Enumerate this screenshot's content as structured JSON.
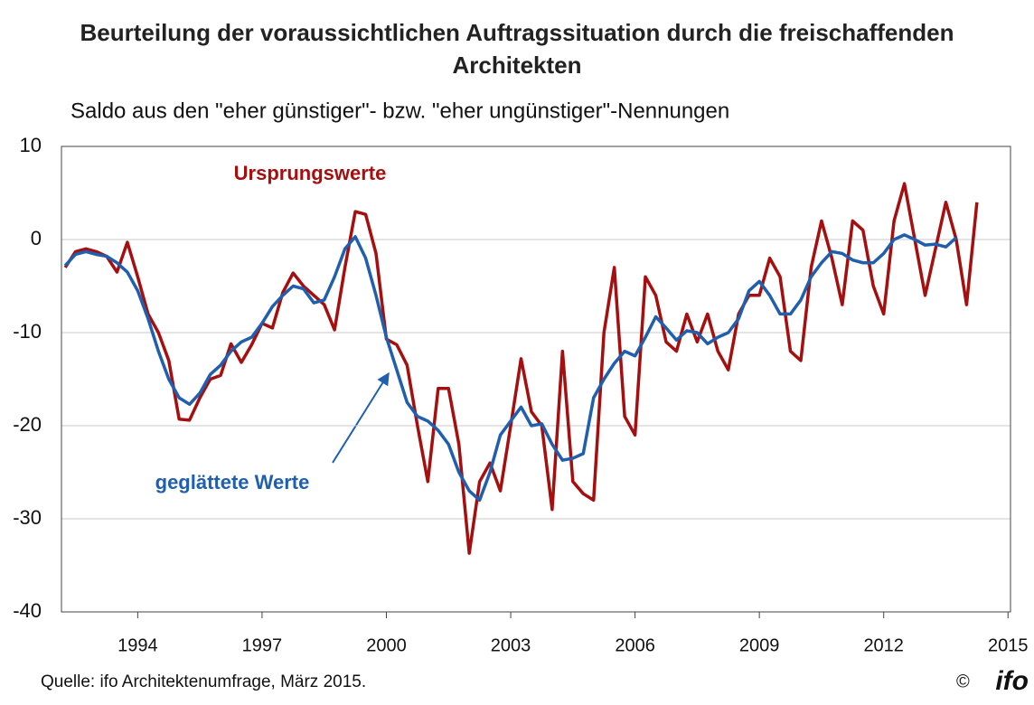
{
  "chart_data": {
    "type": "line",
    "title": "Beurteilung der voraussichtlichen Auftragssituation durch die freischaffenden Architekten",
    "subtitle": "Saldo aus den \"eher günstiger\"- bzw. \"eher ungünstiger\"-Nennungen",
    "annotations": [
      "Ursprungswerte",
      "geglättete Werte"
    ],
    "source": "Quelle: ifo Architektenumfrage, März 2015.",
    "copyright": "©",
    "logo": "ifo",
    "x": [
      1992.25,
      1992.5,
      1992.75,
      1993,
      1993.25,
      1993.5,
      1993.75,
      1994,
      1994.25,
      1994.5,
      1994.75,
      1995,
      1995.25,
      1995.5,
      1995.75,
      1996,
      1996.25,
      1996.5,
      1996.75,
      1997,
      1997.25,
      1997.5,
      1997.75,
      1998,
      1998.25,
      1998.5,
      1998.75,
      1999,
      1999.25,
      1999.5,
      1999.75,
      2000,
      2000.25,
      2000.5,
      2000.75,
      2001,
      2001.25,
      2001.5,
      2001.75,
      2002,
      2002.25,
      2002.5,
      2002.75,
      2003,
      2003.25,
      2003.5,
      2003.75,
      2004,
      2004.25,
      2004.5,
      2004.75,
      2005,
      2005.25,
      2005.5,
      2005.75,
      2006,
      2006.25,
      2006.5,
      2006.75,
      2007,
      2007.25,
      2007.5,
      2007.75,
      2008,
      2008.25,
      2008.5,
      2008.75,
      2009,
      2009.25,
      2009.5,
      2009.75,
      2010,
      2010.25,
      2010.5,
      2010.75,
      2011,
      2011.25,
      2011.5,
      2011.75,
      2012,
      2012.25,
      2012.5,
      2012.75,
      2013,
      2013.25,
      2013.5,
      2013.75,
      2014,
      2014.25
    ],
    "series": [
      {
        "name": "Ursprungswerte",
        "color": "#a50f0f",
        "values": [
          -3,
          -1.3,
          -1,
          -1.3,
          -1.8,
          -3.5,
          -0.3,
          -4,
          -8,
          -10,
          -13,
          -19.3,
          -19.4,
          -17,
          -15,
          -14.6,
          -11.2,
          -13.2,
          -11.3,
          -9,
          -9.5,
          -5.7,
          -3.6,
          -5,
          -6,
          -7,
          -9.7,
          -3,
          3,
          2.7,
          -1.5,
          -10.7,
          -11.3,
          -13.5,
          -20,
          -26,
          -16,
          -16,
          -22,
          -33.7,
          -26,
          -24,
          -27,
          -20,
          -12.8,
          -18.5,
          -20,
          -29,
          -12,
          -26,
          -27.3,
          -28,
          -10,
          -3,
          -19,
          -21,
          -4,
          -6,
          -11,
          -12,
          -8,
          -11,
          -8,
          -12,
          -14,
          -8,
          -6,
          -6,
          -2,
          -4,
          -12,
          -13,
          -3,
          2,
          -2,
          -7,
          2,
          1,
          -5,
          -8,
          2,
          6,
          0,
          -6,
          -1,
          4,
          0,
          -7,
          4
        ]
      },
      {
        "name": "geglättete Werte",
        "color": "#1f5fad",
        "values": [
          -2.8,
          -1.6,
          -1.3,
          -1.6,
          -1.8,
          -2.5,
          -3.5,
          -5.5,
          -8.5,
          -12,
          -15,
          -17,
          -17.7,
          -16.5,
          -14.5,
          -13.5,
          -12,
          -11,
          -10.5,
          -9,
          -7.2,
          -6,
          -5,
          -5.3,
          -6.8,
          -6.5,
          -4,
          -1,
          0.3,
          -2,
          -6,
          -10.5,
          -14,
          -17.5,
          -19,
          -19.5,
          -20.5,
          -22,
          -25,
          -27,
          -28,
          -25,
          -21,
          -19.5,
          -18,
          -20,
          -19.8,
          -22,
          -23.7,
          -23.5,
          -23,
          -17,
          -15,
          -13.3,
          -12,
          -12.5,
          -10.5,
          -8.3,
          -9.5,
          -10.8,
          -9.8,
          -10,
          -11.2,
          -10.5,
          -10,
          -8.5,
          -5.5,
          -4.5,
          -6,
          -8,
          -8,
          -6.5,
          -4,
          -2.5,
          -1.3,
          -1.5,
          -2.2,
          -2.5,
          -2.5,
          -1.5,
          0,
          0.5,
          0,
          -0.6,
          -0.5,
          -0.8,
          0.2,
          null,
          null
        ]
      }
    ],
    "xlim": [
      1992.16,
      2015.06
    ],
    "xticks": [
      1994,
      1997,
      2000,
      2003,
      2006,
      2009,
      2012,
      2015
    ],
    "ylim": [
      -40,
      10
    ],
    "yticks": [
      -40,
      -30,
      -20,
      -10,
      0,
      10
    ],
    "grid": true
  }
}
